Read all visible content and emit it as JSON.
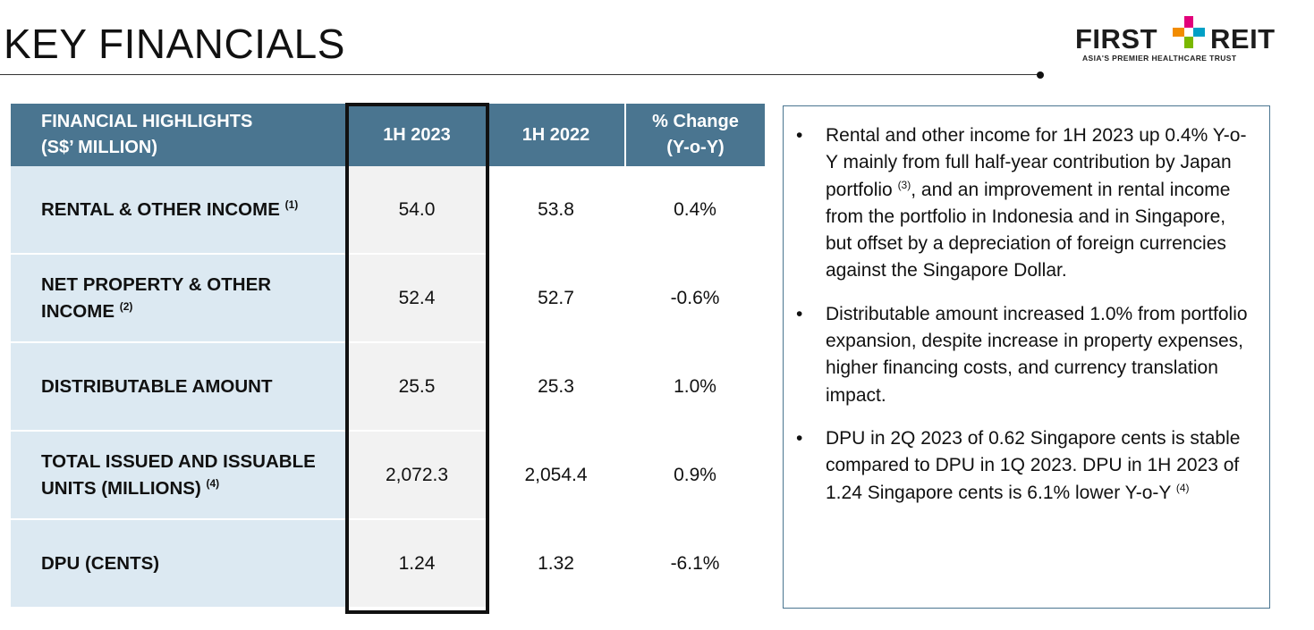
{
  "header": {
    "title": "KEY FINANCIALS"
  },
  "logo": {
    "word_left": "FIRST",
    "word_right": "REIT",
    "tagline": "ASIA'S PREMIER HEALTHCARE TRUST",
    "cross_colors": [
      "#e2007a",
      "#f28c00",
      "#00a0c6",
      "#7ab800"
    ]
  },
  "table": {
    "header_line1": "FINANCIAL HIGHLIGHTS",
    "header_line2": "(S$’ MILLION)",
    "col_2023": "1H 2023",
    "col_2022": "1H 2022",
    "col_change_line1": "% Change",
    "col_change_line2": "(Y-o-Y)",
    "rows": [
      {
        "label_line1": "RENTAL & OTHER INCOME",
        "label_line2": "",
        "note": "(1)",
        "v2023": "54.0",
        "v2022": "53.8",
        "change": "0.4%"
      },
      {
        "label_line1": "NET PROPERTY & OTHER",
        "label_line2": "INCOME",
        "note": "(2)",
        "v2023": "52.4",
        "v2022": "52.7",
        "change": "-0.6%"
      },
      {
        "label_line1": "DISTRIBUTABLE AMOUNT",
        "label_line2": "",
        "note": "",
        "v2023": "25.5",
        "v2022": "25.3",
        "change": "1.0%"
      },
      {
        "label_line1": "TOTAL ISSUED AND ISSUABLE",
        "label_line2": "UNITS (MILLIONS)",
        "note": "(4)",
        "v2023": "2,072.3",
        "v2022": "2,054.4",
        "change": "0.9%"
      },
      {
        "label_line1": "DPU (CENTS)",
        "label_line2": "",
        "note": "",
        "v2023": "1.24",
        "v2022": "1.32",
        "change": "-6.1%"
      }
    ]
  },
  "commentary": {
    "bullet_glyph": "•",
    "bullet1_before": "Rental and other income for 1H 2023 up 0.4% Y-o-Y mainly from full half-year contribution by Japan portfolio",
    "bullet1_note": "(3)",
    "bullet1_after": ", and an improvement in rental income from the portfolio in Indonesia and in Singapore, but offset by a depreciation of foreign currencies against the Singapore Dollar.",
    "bullet2": "Distributable amount increased 1.0% from portfolio expansion, despite increase in property expenses, higher financing costs, and currency translation impact.",
    "bullet3_before": "DPU in 2Q 2023 of 0.62 Singapore cents is stable compared to DPU in 1Q 2023. DPU in 1H 2023 of 1.24 Singapore cents is 6.1% lower Y-o-Y",
    "bullet3_note": "(4)"
  }
}
